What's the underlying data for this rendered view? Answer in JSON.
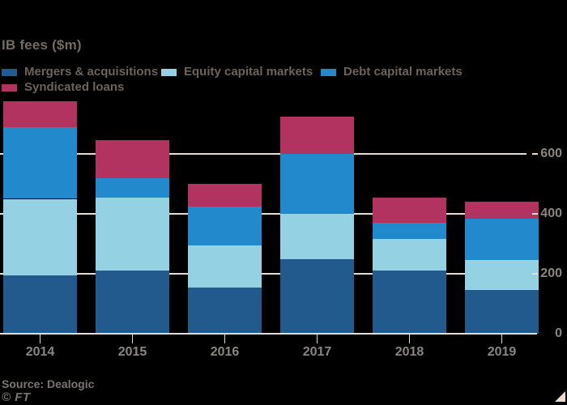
{
  "title": "IB fees ($m)",
  "footer": {
    "source": "Source: Dealogic",
    "brand": "© FT"
  },
  "palette": {
    "background": "#000000",
    "grid": "#e8dcd0",
    "axis_text": "#8b8580",
    "title_text": "#746a61",
    "legend_text": "#6b635c",
    "source_text": "#7b7570",
    "corner_mark": "#eedbc8"
  },
  "chart_data": {
    "type": "bar",
    "stacked": true,
    "title": "IB fees ($m)",
    "categories": [
      "2014",
      "2015",
      "2016",
      "2017",
      "2018",
      "2019"
    ],
    "series": [
      {
        "name": "Mergers & acquisitions",
        "color": "#235a8e",
        "values": [
          195,
          210,
          155,
          250,
          210,
          145
        ]
      },
      {
        "name": "Equity capital markets",
        "color": "#93d1e3",
        "values": [
          255,
          245,
          140,
          150,
          105,
          100
        ]
      },
      {
        "name": "Debt capital markets",
        "color": "#2289cc",
        "values": [
          240,
          65,
          130,
          200,
          55,
          140
        ]
      },
      {
        "name": "Syndicated loans",
        "color": "#b23260",
        "values": [
          85,
          125,
          75,
          125,
          85,
          55
        ]
      }
    ],
    "totals": [
      775,
      645,
      500,
      725,
      455,
      440
    ],
    "xlabel": "",
    "ylabel": "IB fees ($m)",
    "yticks": [
      0,
      200,
      400,
      600
    ],
    "ylim": [
      0,
      790
    ],
    "grid": true,
    "y_axis_side": "right",
    "legend_position": "top",
    "legend_rows": [
      [
        "Mergers & acquisitions",
        "Equity capital markets",
        "Debt capital markets"
      ],
      [
        "Syndicated loans"
      ]
    ]
  }
}
